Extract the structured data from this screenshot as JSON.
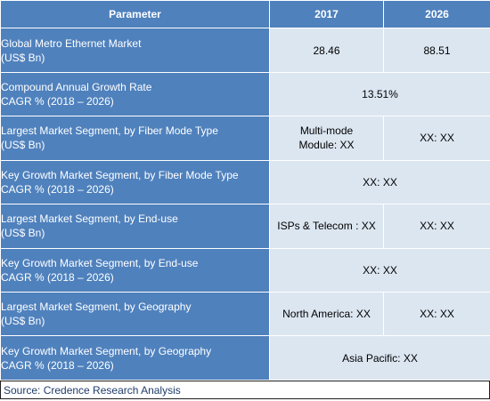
{
  "table": {
    "headers": {
      "parameter": "Parameter",
      "col_2017": "2017",
      "col_2026": "2026"
    },
    "rows": [
      {
        "label_line1": "Global Metro Ethernet Market",
        "label_line2": "(US$ Bn)",
        "v2017_line1": "28.46",
        "v2017_line2": "",
        "v2026": "88.51"
      },
      {
        "label_line1": "Compound Annual Growth Rate",
        "label_line2": "CAGR % (2018 – 2026)",
        "merged": "13.51%"
      },
      {
        "label_line1": "Largest Market Segment, by Fiber Mode Type",
        "label_line2": "(US$ Bn)",
        "v2017_line1": "Multi-mode",
        "v2017_line2": "Module: XX",
        "v2026": "XX: XX"
      },
      {
        "label_line1": "Key Growth Market Segment, by Fiber Mode Type",
        "label_line2": "CAGR % (2018 – 2026)",
        "merged": "XX: XX"
      },
      {
        "label_line1": "Largest Market Segment, by End-use",
        "label_line2": "(US$ Bn)",
        "v2017_line1": "ISPs & Telecom : XX",
        "v2017_line2": "",
        "v2026": "XX: XX"
      },
      {
        "label_line1": "Key Growth Market Segment, by End-use",
        "label_line2": "CAGR % (2018 – 2026)",
        "merged": "XX: XX"
      },
      {
        "label_line1": "Largest Market Segment, by Geography",
        "label_line2": "(US$ Bn)",
        "v2017_line1": "North America: XX",
        "v2017_line2": "",
        "v2026": "XX: XX"
      },
      {
        "label_line1": "Key Growth Market Segment, by Geography",
        "label_line2": "CAGR % (2018 – 2026)",
        "merged": "Asia Pacific: XX"
      }
    ]
  },
  "source": "Source: Credence Research Analysis"
}
